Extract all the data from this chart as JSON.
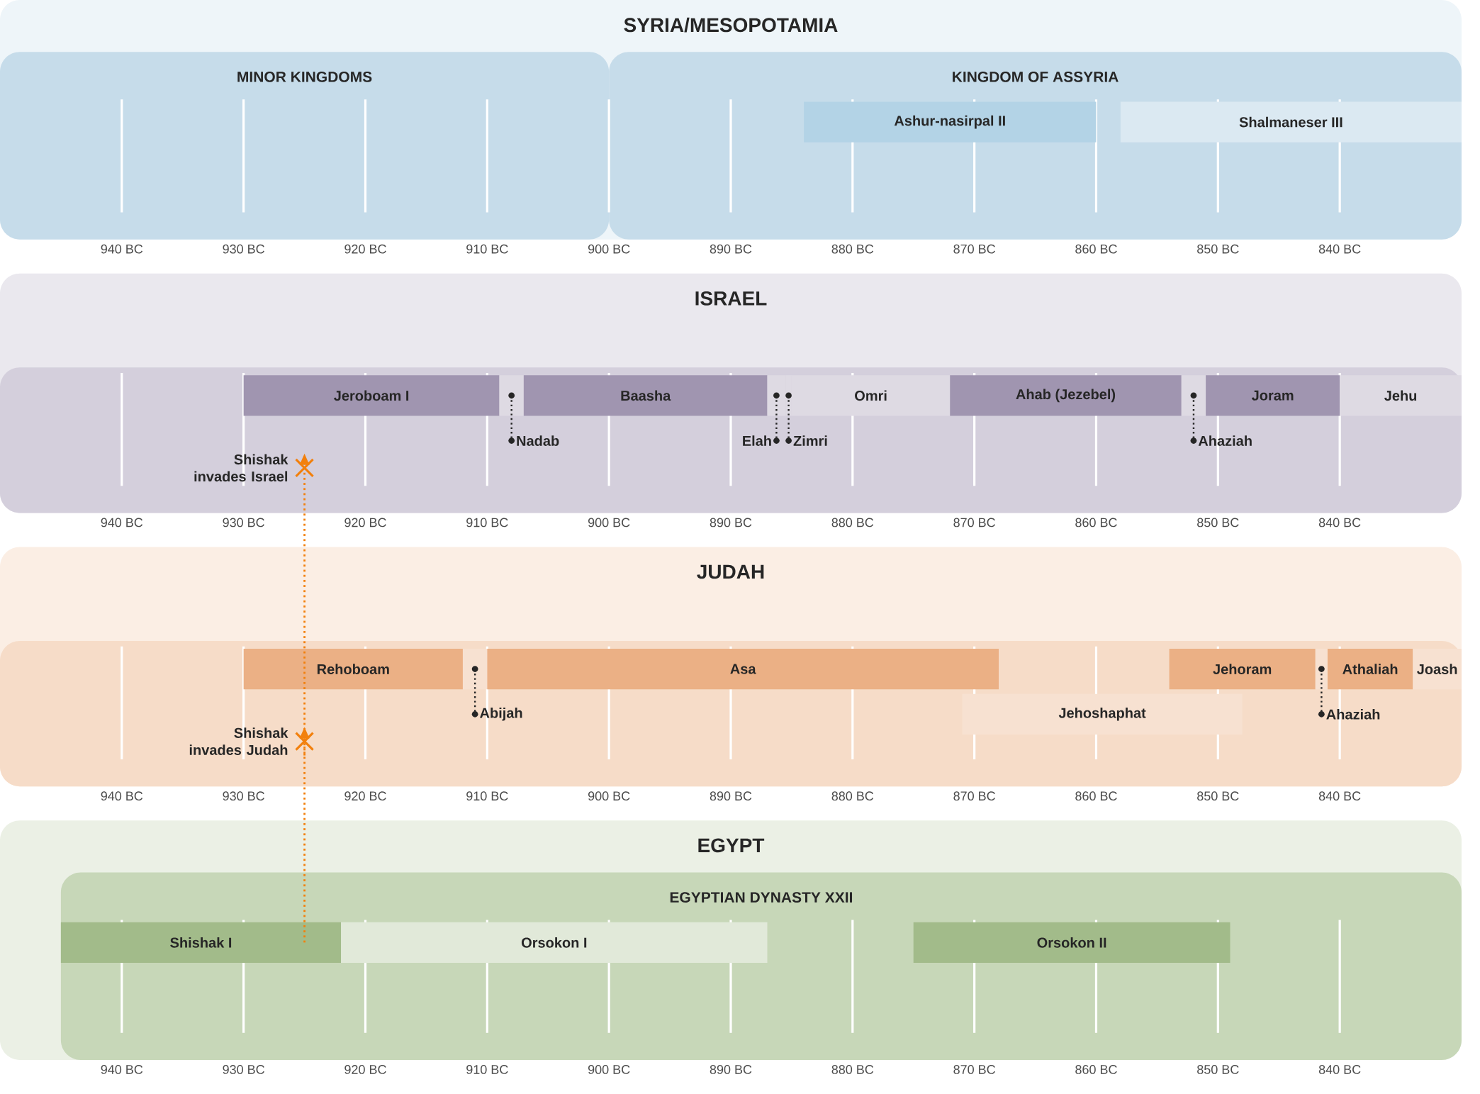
{
  "chart_data": [
    {
      "type": "bar",
      "orientation": "horizontal",
      "title": "SYRIA/MESOPOTAMIA",
      "categories": [
        null
      ],
      "xlim": [
        950,
        830
      ],
      "xticks": [
        {
          "value": 940,
          "label": "940 BC"
        },
        {
          "value": 930,
          "label": "930 BC"
        },
        {
          "value": 920,
          "label": "920 BC"
        },
        {
          "value": 910,
          "label": "910 BC"
        },
        {
          "value": 900,
          "label": "900 BC"
        },
        {
          "value": 890,
          "label": "890 BC"
        },
        {
          "value": 880,
          "label": "880 BC"
        },
        {
          "value": 870,
          "label": "870 BC"
        },
        {
          "value": 860,
          "label": "860 BC"
        },
        {
          "value": 850,
          "label": "850 BC"
        },
        {
          "value": 840,
          "label": "840 BC"
        }
      ],
      "grid": "x",
      "tick_labels": "x",
      "bands": [
        {
          "axis": "x",
          "from": 950,
          "to": 900,
          "label": "MINOR KINGDOMS",
          "color": "#c6dcea"
        },
        {
          "axis": "x",
          "from": 900,
          "to": 830,
          "label": "KINGDOM OF ASSYRIA",
          "color": "#c6dcea"
        }
      ],
      "series": [
        {
          "name": "Ashur-nasirpal II",
          "color": "#b3d3e6",
          "base": [
            884
          ],
          "values": [
            -24
          ]
        },
        {
          "name": "Shalmaneser III",
          "color": "#dbe9f2",
          "base": [
            858
          ],
          "values": [
            -28
          ]
        }
      ]
    },
    {
      "type": "bar",
      "orientation": "horizontal",
      "title": "ISRAEL",
      "categories": [
        null
      ],
      "xlim": [
        950,
        830
      ],
      "xticks": [
        {
          "value": 940,
          "label": "940 BC"
        },
        {
          "value": 930,
          "label": "930 BC"
        },
        {
          "value": 920,
          "label": "920 BC"
        },
        {
          "value": 910,
          "label": "910 BC"
        },
        {
          "value": 900,
          "label": "900 BC"
        },
        {
          "value": 890,
          "label": "890 BC"
        },
        {
          "value": 880,
          "label": "880 BC"
        },
        {
          "value": 870,
          "label": "870 BC"
        },
        {
          "value": 860,
          "label": "860 BC"
        },
        {
          "value": 850,
          "label": "850 BC"
        },
        {
          "value": 840,
          "label": "840 BC"
        }
      ],
      "grid": "x",
      "tick_labels": "x",
      "annotations": [
        {
          "text": "Shishak invades Israel",
          "x": 925
        }
      ],
      "series": [
        {
          "name": "Jeroboam I",
          "color": "#a095b0",
          "base": [
            930
          ],
          "values": [
            -21
          ]
        },
        {
          "name": "Nadab",
          "color": "#dedae3",
          "base": [
            909
          ],
          "values": [
            -2
          ]
        },
        {
          "name": "Baasha",
          "color": "#a095b0",
          "base": [
            907
          ],
          "values": [
            -20
          ]
        },
        {
          "name": "Elah",
          "color": "#dedae3",
          "base": [
            887
          ],
          "values": [
            -1.5
          ]
        },
        {
          "name": "Zimri",
          "color": "#dedae3",
          "base": [
            885.5
          ],
          "values": [
            -0.5
          ]
        },
        {
          "name": "Omri",
          "color": "#dedae3",
          "base": [
            885
          ],
          "values": [
            -13
          ]
        },
        {
          "name": "Ahab (Jezebel)",
          "color": "#a095b0",
          "base": [
            872
          ],
          "values": [
            -19
          ]
        },
        {
          "name": "Ahaziah",
          "color": "#dedae3",
          "base": [
            853
          ],
          "values": [
            -2
          ]
        },
        {
          "name": "Joram",
          "color": "#a095b0",
          "base": [
            851
          ],
          "values": [
            -11
          ]
        },
        {
          "name": "Jehu",
          "color": "#dedae3",
          "base": [
            840
          ],
          "values": [
            -10
          ]
        }
      ]
    },
    {
      "type": "bar",
      "orientation": "horizontal",
      "title": "JUDAH",
      "categories": [
        null,
        null
      ],
      "xlim": [
        950,
        830
      ],
      "xticks": [
        {
          "value": 940,
          "label": "940 BC"
        },
        {
          "value": 930,
          "label": "930 BC"
        },
        {
          "value": 920,
          "label": "920 BC"
        },
        {
          "value": 910,
          "label": "910 BC"
        },
        {
          "value": 900,
          "label": "900 BC"
        },
        {
          "value": 890,
          "label": "890 BC"
        },
        {
          "value": 880,
          "label": "880 BC"
        },
        {
          "value": 870,
          "label": "870 BC"
        },
        {
          "value": 860,
          "label": "860 BC"
        },
        {
          "value": 850,
          "label": "850 BC"
        },
        {
          "value": 840,
          "label": "840 BC"
        }
      ],
      "grid": "x",
      "tick_labels": "x",
      "annotations": [
        {
          "text": "Shishak invades Judah",
          "x": 925
        }
      ],
      "series": [
        {
          "name": "Rehoboam",
          "color": "#ebb085",
          "base": [
            930,
            null
          ],
          "values": [
            -18,
            null
          ]
        },
        {
          "name": "Abijah",
          "color": "#f7e1d1",
          "base": [
            912,
            null
          ],
          "values": [
            -2,
            null
          ]
        },
        {
          "name": "Asa",
          "color": "#ebb085",
          "base": [
            910,
            null
          ],
          "values": [
            -42,
            null
          ]
        },
        {
          "name": "Jehoshaphat",
          "color": "#f7e1d1",
          "base": [
            null,
            871
          ],
          "values": [
            null,
            -23
          ]
        },
        {
          "name": "Jehoram",
          "color": "#ebb085",
          "base": [
            854,
            null
          ],
          "values": [
            -12,
            null
          ]
        },
        {
          "name": "Ahaziah",
          "color": "#f7e1d1",
          "base": [
            842,
            null
          ],
          "values": [
            -1,
            null
          ]
        },
        {
          "name": "Athaliah",
          "color": "#ebb085",
          "base": [
            841,
            null
          ],
          "values": [
            -7,
            null
          ]
        },
        {
          "name": "Joash",
          "color": "#f7e1d1",
          "base": [
            834,
            null
          ],
          "values": [
            -4,
            null
          ]
        }
      ]
    },
    {
      "type": "bar",
      "orientation": "horizontal",
      "title": "EGYPT",
      "categories": [
        null
      ],
      "xlim": [
        950,
        830
      ],
      "xticks": [
        {
          "value": 940,
          "label": "940 BC"
        },
        {
          "value": 930,
          "label": "930 BC"
        },
        {
          "value": 920,
          "label": "920 BC"
        },
        {
          "value": 910,
          "label": "910 BC"
        },
        {
          "value": 900,
          "label": "900 BC"
        },
        {
          "value": 890,
          "label": "890 BC"
        },
        {
          "value": 880,
          "label": "880 BC"
        },
        {
          "value": 870,
          "label": "870 BC"
        },
        {
          "value": 860,
          "label": "860 BC"
        },
        {
          "value": 850,
          "label": "850 BC"
        },
        {
          "value": 840,
          "label": "840 BC"
        }
      ],
      "grid": "x",
      "tick_labels": "x",
      "bands": [
        {
          "axis": "x",
          "from": 945,
          "to": 830,
          "label": "EGYPTIAN DYNASTY XXII",
          "color": "#c7d7b8"
        }
      ],
      "series": [
        {
          "name": "Shishak I",
          "color": "#a2bb8a",
          "base": [
            945
          ],
          "values": [
            -23
          ]
        },
        {
          "name": "Orsokon I",
          "color": "#e1e9d9",
          "base": [
            922
          ],
          "values": [
            -35
          ]
        },
        {
          "name": "Orsokon II",
          "color": "#a2bb8a",
          "base": [
            875
          ],
          "values": [
            -26
          ]
        }
      ]
    }
  ]
}
